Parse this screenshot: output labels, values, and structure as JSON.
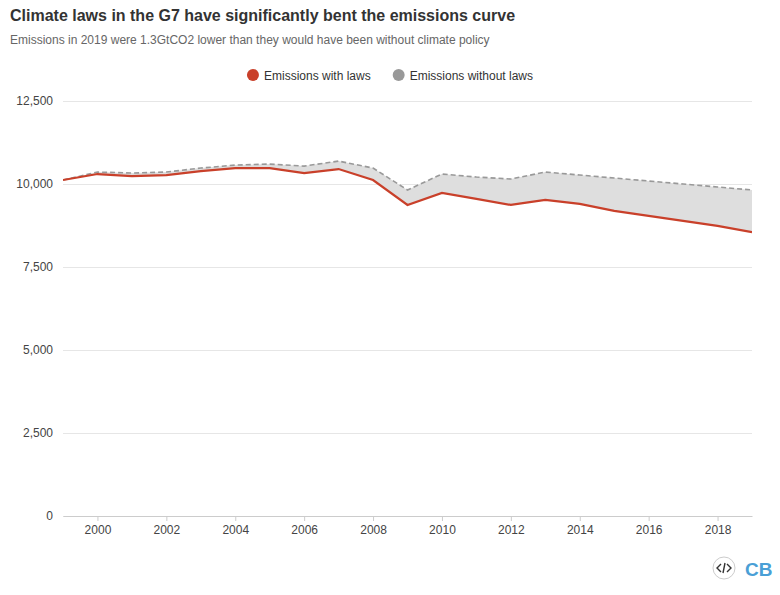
{
  "chart_data": {
    "type": "line",
    "title": "Climate laws in the G7 have significantly bent the emissions curve",
    "subtitle": "Emissions in 2019 were 1.3GtCO2 lower than they would have been without climate policy",
    "x": [
      1999,
      2000,
      2001,
      2002,
      2003,
      2004,
      2005,
      2006,
      2007,
      2008,
      2009,
      2010,
      2011,
      2012,
      2013,
      2014,
      2015,
      2016,
      2017,
      2018,
      2019
    ],
    "series": [
      {
        "name": "Emissions with laws",
        "color": "#c9402a",
        "line_style": "solid",
        "values": [
          10120,
          10300,
          10240,
          10270,
          10390,
          10480,
          10480,
          10330,
          10450,
          10120,
          9370,
          9730,
          9550,
          9370,
          9520,
          9400,
          9190,
          9040,
          8890,
          8740,
          8550
        ]
      },
      {
        "name": "Emissions without laws",
        "color": "#999999",
        "line_style": "dashed",
        "values": [
          10120,
          10360,
          10330,
          10360,
          10480,
          10570,
          10600,
          10540,
          10690,
          10480,
          9820,
          10300,
          10210,
          10150,
          10360,
          10270,
          10180,
          10090,
          10000,
          9910,
          9820
        ]
      }
    ],
    "xlim": [
      1999,
      2019
    ],
    "xticks": [
      2000,
      2002,
      2004,
      2006,
      2008,
      2010,
      2012,
      2014,
      2016,
      2018
    ],
    "ylim": [
      0,
      12500
    ],
    "yticks": [
      0,
      {
        "value": 2500,
        "label": "2,500"
      },
      {
        "value": 5000,
        "label": "5,000"
      },
      {
        "value": 7500,
        "label": "7,500"
      },
      {
        "value": 10000,
        "label": "10,000"
      },
      {
        "value": 12500,
        "label": "12,500"
      }
    ],
    "grid": true,
    "legend": "top",
    "annotations": [
      "CB"
    ]
  }
}
